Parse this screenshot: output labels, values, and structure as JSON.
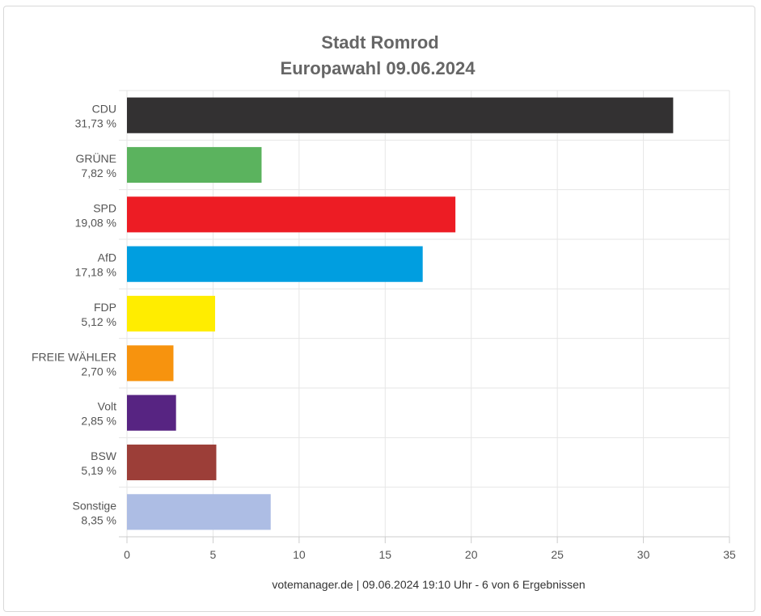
{
  "chart_data": {
    "type": "bar",
    "orientation": "horizontal",
    "title": "Stadt Romrod",
    "subtitle": "Europawahl 09.06.2024",
    "categories": [
      "CDU",
      "GRÜNE",
      "SPD",
      "AfD",
      "FDP",
      "FREIE WÄHLER",
      "Volt",
      "BSW",
      "Sonstige"
    ],
    "values": [
      31.73,
      7.82,
      19.08,
      17.18,
      5.12,
      2.7,
      2.85,
      5.19,
      8.35
    ],
    "value_labels": [
      "31,73 %",
      "7,82 %",
      "19,08 %",
      "17,18 %",
      "5,12 %",
      "2,70 %",
      "2,85 %",
      "5,19 %",
      "8,35 %"
    ],
    "colors": [
      "#333132",
      "#5bb35e",
      "#ed1c24",
      "#009ee0",
      "#ffed00",
      "#f7930e",
      "#572482",
      "#9c3e38",
      "#adbde4"
    ],
    "xlim": [
      0,
      35
    ],
    "xticks": [
      "0",
      "5",
      "10",
      "15",
      "20",
      "25",
      "30",
      "35"
    ],
    "xtick_values": [
      0,
      5,
      10,
      15,
      20,
      25,
      30,
      35
    ],
    "grid": true,
    "xlabel": "",
    "ylabel": ""
  },
  "footer": "votemanager.de | 09.06.2024 19:10 Uhr - 6 von 6 Ergebnissen"
}
